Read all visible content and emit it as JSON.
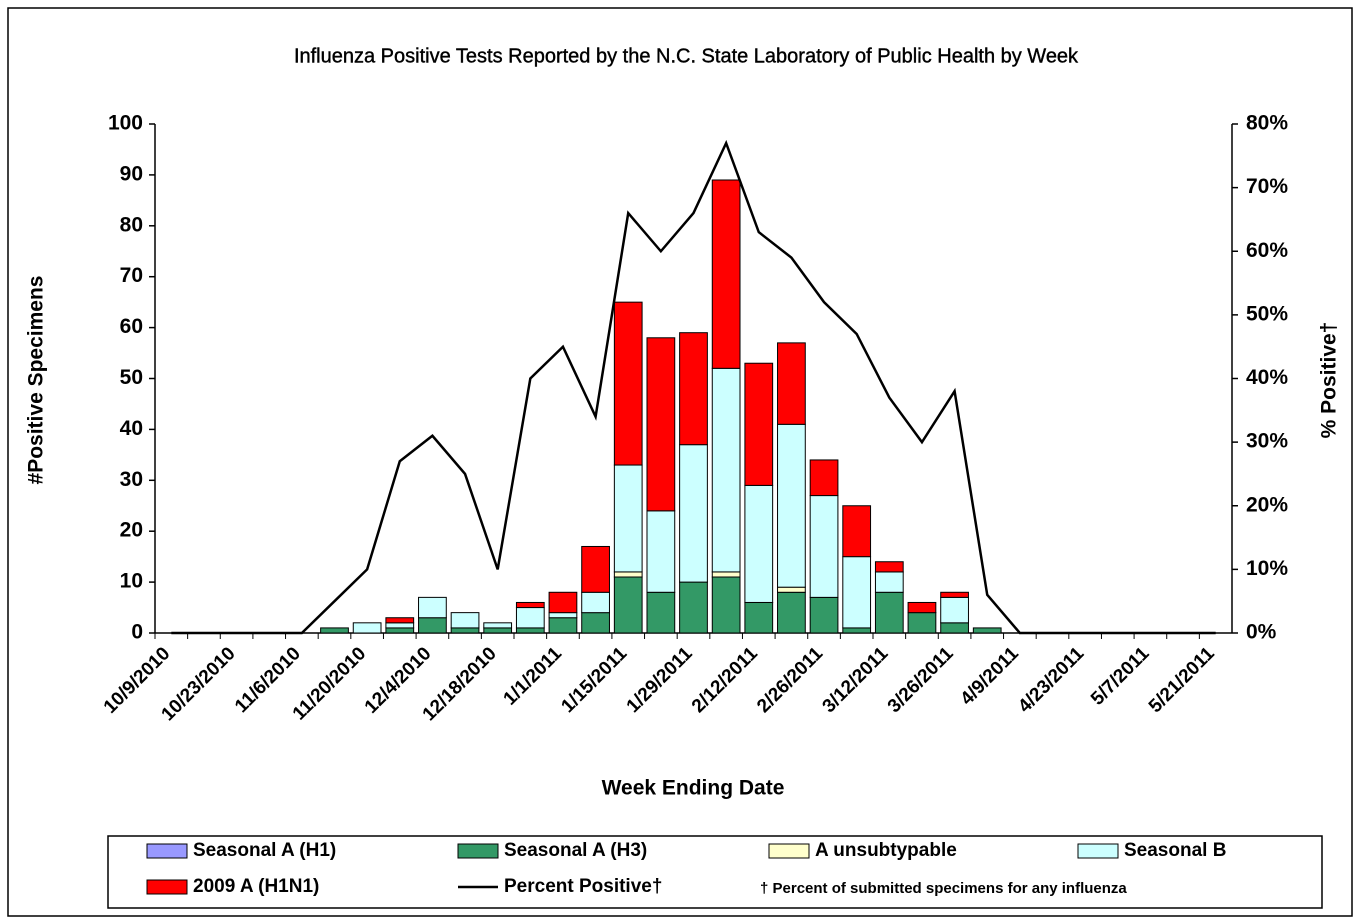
{
  "chart_data": {
    "type": "bar",
    "stacked": true,
    "title": "Influenza Positive Tests Reported by the N.C. State Laboratory of Public Health by Week",
    "x_label": "Week Ending Date",
    "y_label": "#Positive Specimens",
    "y2_label": "% Positive†",
    "legend_note": "† Percent of submitted specimens for any influenza",
    "categories": [
      "10/9/2010",
      null,
      "10/23/2010",
      null,
      "11/6/2010",
      null,
      "11/20/2010",
      null,
      "12/4/2010",
      null,
      "12/18/2010",
      null,
      "1/1/2011",
      null,
      "1/15/2011",
      null,
      "1/29/2011",
      null,
      "2/12/2011",
      null,
      "2/26/2011",
      null,
      "3/12/2011",
      null,
      "3/26/2011",
      null,
      "4/9/2011",
      null,
      "4/23/2011",
      null,
      "5/7/2011",
      null,
      "5/21/2011"
    ],
    "ylim": [
      0,
      100
    ],
    "yticks": [
      0,
      10,
      20,
      30,
      40,
      50,
      60,
      70,
      80,
      90,
      100
    ],
    "y2lim": [
      0,
      80
    ],
    "y2ticks": [
      {
        "value": 0,
        "label": "0%"
      },
      {
        "value": 10,
        "label": "10%"
      },
      {
        "value": 20,
        "label": "20%"
      },
      {
        "value": 30,
        "label": "30%"
      },
      {
        "value": 40,
        "label": "40%"
      },
      {
        "value": 50,
        "label": "50%"
      },
      {
        "value": 60,
        "label": "60%"
      },
      {
        "value": 70,
        "label": "70%"
      },
      {
        "value": 80,
        "label": "80%"
      }
    ],
    "grid": false,
    "series": [
      {
        "name": "Seasonal A (H1)",
        "color": "#9999ff",
        "values": [
          0,
          0,
          0,
          0,
          0,
          0,
          0,
          0,
          0,
          0,
          0,
          0,
          0,
          0,
          0,
          0,
          0,
          0,
          0,
          0,
          0,
          0,
          0,
          0,
          0,
          0,
          0,
          0,
          0,
          0,
          0,
          0,
          0
        ]
      },
      {
        "name": "Seasonal A (H3)",
        "color": "#339966",
        "values": [
          0,
          0,
          0,
          0,
          0,
          1,
          0,
          1,
          3,
          1,
          1,
          1,
          3,
          4,
          11,
          8,
          10,
          11,
          6,
          8,
          7,
          1,
          8,
          4,
          2,
          1,
          0,
          0,
          0,
          0,
          0,
          0,
          0
        ]
      },
      {
        "name": "A unsubtypable",
        "color": "#ffffcc",
        "values": [
          0,
          0,
          0,
          0,
          0,
          0,
          0,
          0,
          0,
          0,
          0,
          0,
          0,
          0,
          1,
          0,
          0,
          1,
          0,
          1,
          0,
          0,
          0,
          0,
          0,
          0,
          0,
          0,
          0,
          0,
          0,
          0,
          0
        ]
      },
      {
        "name": "Seasonal B",
        "color": "#ccffff",
        "values": [
          0,
          0,
          0,
          0,
          0,
          0,
          2,
          1,
          4,
          3,
          1,
          4,
          1,
          4,
          21,
          16,
          27,
          40,
          23,
          32,
          20,
          14,
          4,
          0,
          5,
          0,
          0,
          0,
          0,
          0,
          0,
          0,
          0
        ]
      },
      {
        "name": "2009 A (H1N1)",
        "color": "#ff0000",
        "values": [
          0,
          0,
          0,
          0,
          0,
          0,
          0,
          1,
          0,
          0,
          0,
          1,
          4,
          9,
          32,
          34,
          22,
          37,
          24,
          16,
          7,
          10,
          2,
          2,
          1,
          0,
          0,
          0,
          0,
          0,
          0,
          0,
          0
        ]
      },
      {
        "name": "Percent Positive†",
        "type": "line",
        "axis": "y2",
        "color": "#000000",
        "values": [
          0,
          0,
          0,
          0,
          0,
          5,
          10,
          27,
          31,
          25,
          10,
          40,
          45,
          34,
          66,
          60,
          66,
          77,
          63,
          59,
          52,
          47,
          37,
          30,
          38,
          6,
          0,
          0,
          0,
          0,
          0,
          0,
          0
        ]
      }
    ]
  }
}
